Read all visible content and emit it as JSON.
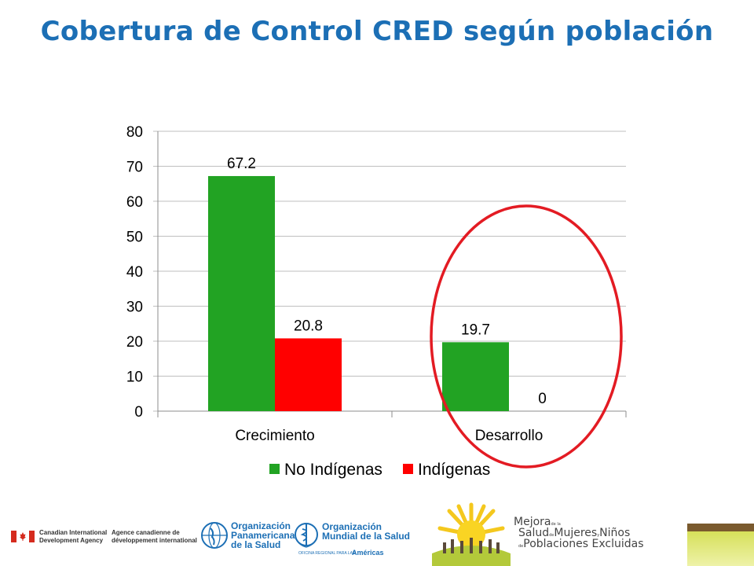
{
  "title": "Cobertura de Control CRED según población",
  "colors": {
    "no_indigenas": "#22a323",
    "indigenas": "#ff0000",
    "title": "#1c6fb5",
    "circle": "#e31b23"
  },
  "chart_data": {
    "type": "bar",
    "categories": [
      "Crecimiento",
      "Desarrollo"
    ],
    "series": [
      {
        "name": "No Indígenas",
        "values": [
          67.2,
          19.7
        ],
        "labels": [
          "67.2",
          "19.7"
        ]
      },
      {
        "name": "Indígenas",
        "values": [
          20.8,
          0
        ],
        "labels": [
          "20.8",
          "0"
        ]
      }
    ],
    "ylim": [
      0,
      80
    ],
    "yticks": [
      "0",
      "10",
      "20",
      "30",
      "40",
      "50",
      "60",
      "70",
      "80"
    ],
    "grid": true,
    "legend": "bottom",
    "annotation": "red ellipse highlighting Desarrollo"
  },
  "footer": {
    "cida_en": [
      "Canadian International",
      "Development Agency"
    ],
    "cida_fr": [
      "Agence canadienne de",
      "développement international"
    ],
    "ops": [
      "Organización",
      "Panamericana",
      "de la Salud"
    ],
    "oms": [
      "Organización",
      "Mundial de la Salud"
    ],
    "oms_sub": "OFICINA REGIONAL PARA LAS",
    "oms_region": "Américas",
    "mejora_1": "Mejora",
    "mejora_2": "Salud",
    "mejora_3": "Mujeres",
    "mejora_4": "Niños",
    "mejora_5": "Poblaciones Excluidas",
    "mejora_de": "de la",
    "mejora_de2": "de",
    "mejora_y": "y",
    "mejora_de3": "de"
  }
}
